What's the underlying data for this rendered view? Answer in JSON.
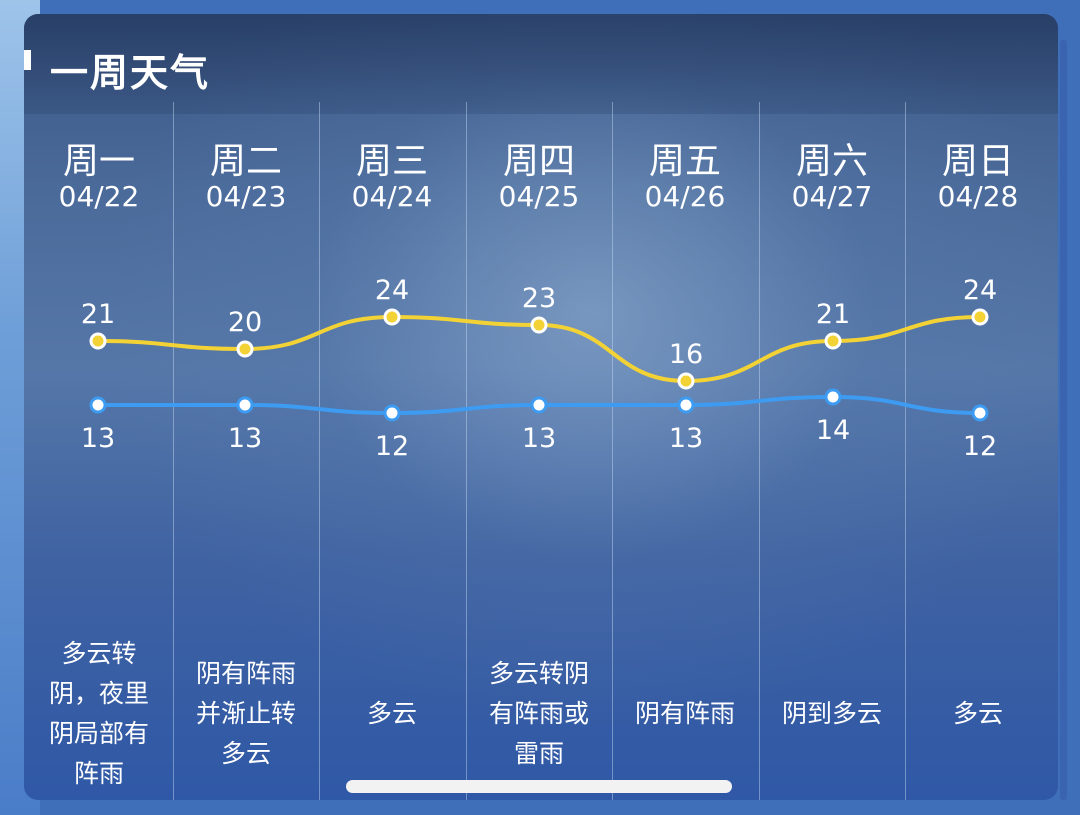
{
  "title": "一周天气",
  "days": [
    {
      "day": "周一",
      "date": "04/22",
      "desc": "多云转阴，夜里阴局部有阵雨"
    },
    {
      "day": "周二",
      "date": "04/23",
      "desc": "阴有阵雨并渐止转多云"
    },
    {
      "day": "周三",
      "date": "04/24",
      "desc": "多云"
    },
    {
      "day": "周四",
      "date": "04/25",
      "desc": "多云转阴有阵雨或雷雨"
    },
    {
      "day": "周五",
      "date": "04/26",
      "desc": "阴有阵雨"
    },
    {
      "day": "周六",
      "date": "04/27",
      "desc": "阴到多云"
    },
    {
      "day": "周日",
      "date": "04/28",
      "desc": "多云"
    }
  ],
  "chart_data": {
    "type": "line",
    "x": [
      "04/22",
      "04/23",
      "04/24",
      "04/25",
      "04/26",
      "04/27",
      "04/28"
    ],
    "series": [
      {
        "values": [
          21,
          20,
          24,
          23,
          16,
          21,
          24
        ],
        "color": "#f3d235"
      },
      {
        "values": [
          13,
          13,
          12,
          13,
          13,
          14,
          12
        ],
        "color": "#3d9bf2"
      }
    ]
  }
}
